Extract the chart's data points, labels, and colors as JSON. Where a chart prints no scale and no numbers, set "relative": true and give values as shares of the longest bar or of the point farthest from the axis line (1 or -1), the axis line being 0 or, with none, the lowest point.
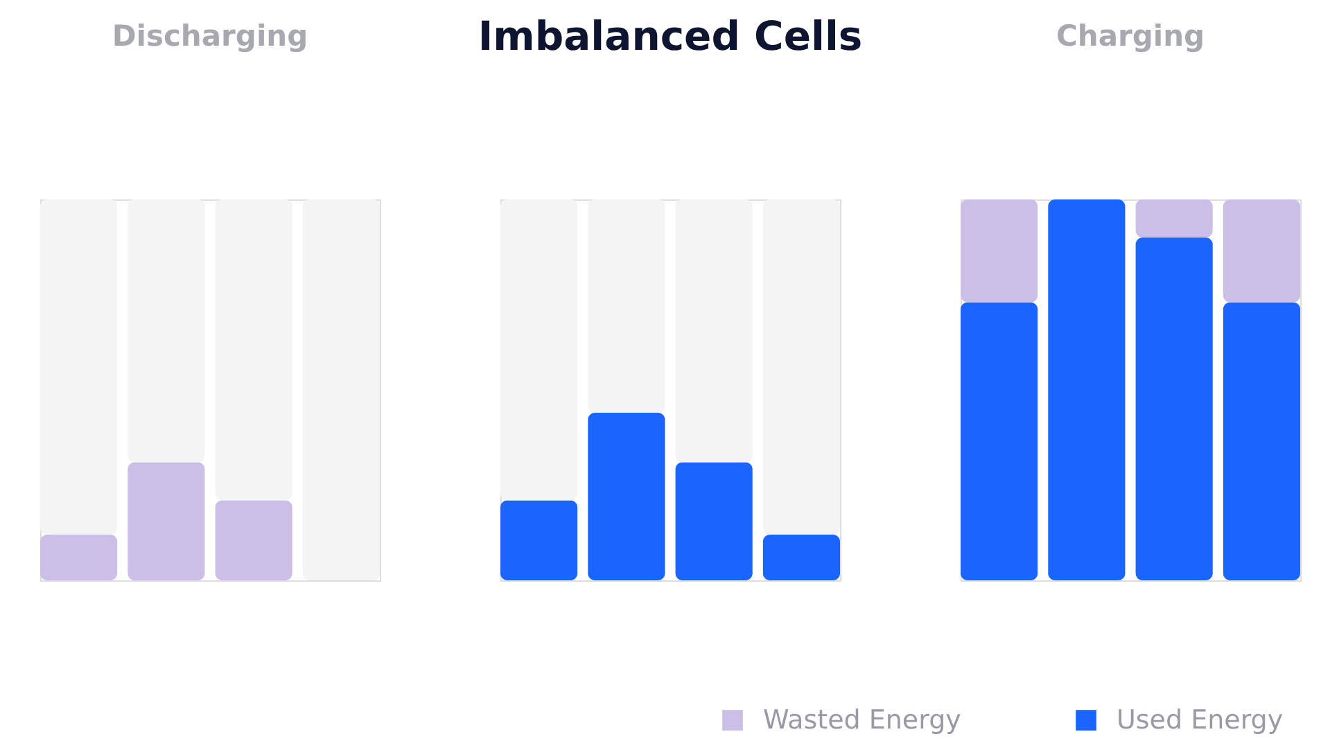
{
  "chart_data": [
    {
      "type": "bar",
      "annotations": [
        "Discharging"
      ],
      "categories": [
        null,
        null,
        null,
        null
      ],
      "relative": true,
      "stacked": true,
      "series": [
        {
          "color": "#cbbfe8",
          "values": [
            0.12,
            0.31,
            0.21,
            0
          ]
        },
        {
          "color": "#f4f4f4",
          "values": [
            0.88,
            0.69,
            0.79,
            1
          ]
        }
      ]
    },
    {
      "type": "bar",
      "title": "Imbalanced Cells",
      "categories": [
        null,
        null,
        null,
        null
      ],
      "relative": true,
      "stacked": true,
      "series": [
        {
          "color": "#1a64ff",
          "values": [
            0.21,
            0.44,
            0.31,
            0.12
          ]
        },
        {
          "color": "#f4f4f4",
          "values": [
            0.79,
            0.56,
            0.69,
            0.88
          ]
        }
      ]
    },
    {
      "type": "bar",
      "annotations": [
        "Charging"
      ],
      "categories": [
        null,
        null,
        null,
        null
      ],
      "relative": true,
      "stacked": true,
      "legend": "bottom",
      "series": [
        {
          "name": "Used Energy",
          "color": "#1a64ff",
          "values": [
            0.73,
            1,
            0.9,
            0.73
          ]
        },
        {
          "name": "Wasted Energy",
          "color": "#cbbfe8",
          "values": [
            0.27,
            0,
            0.1,
            0.27
          ]
        }
      ]
    }
  ]
}
